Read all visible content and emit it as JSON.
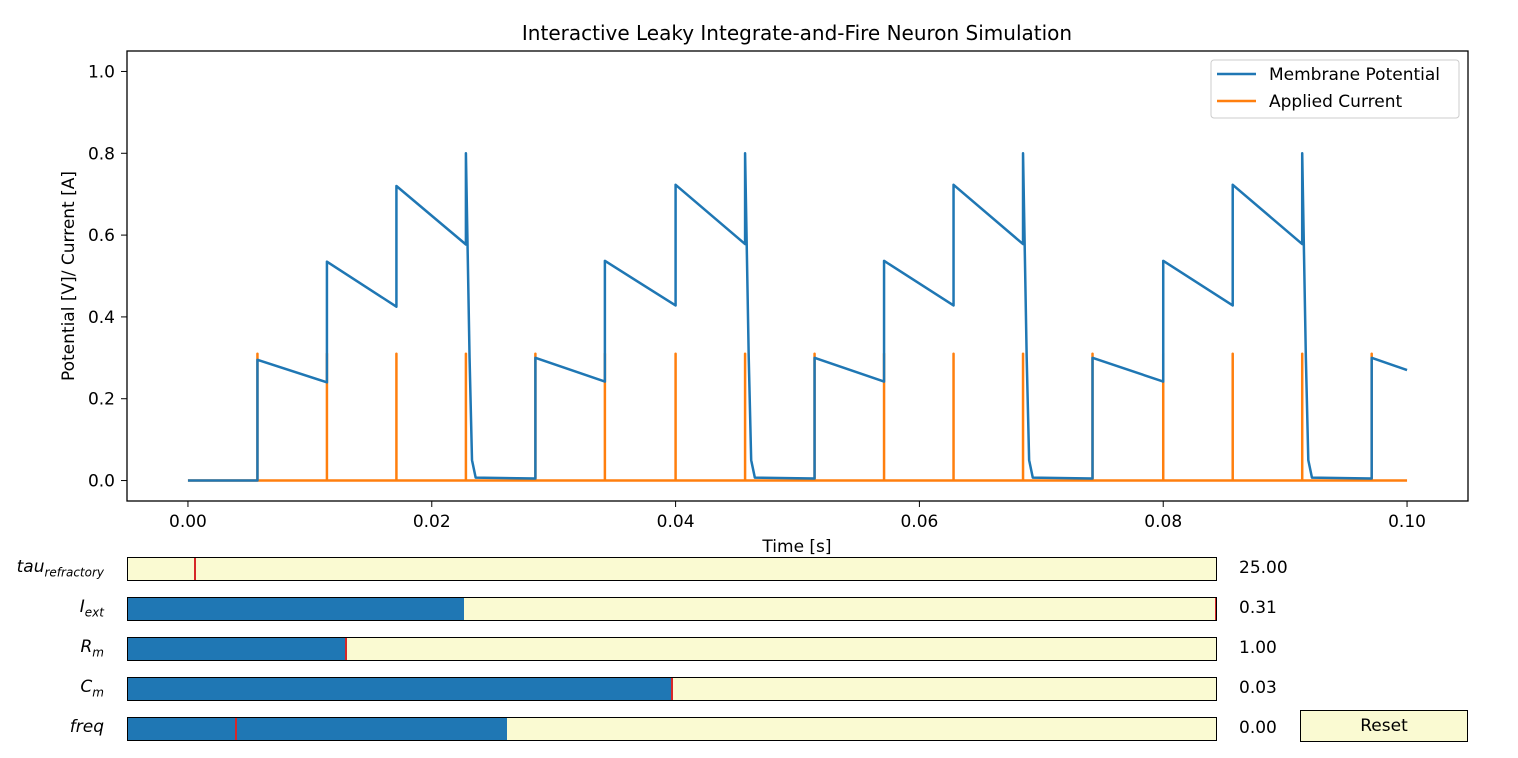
{
  "chart_data": {
    "type": "line",
    "title": "Interactive Leaky Integrate-and-Fire Neuron Simulation",
    "xlabel": "Time [s]",
    "ylabel": "Potential [V]/ Current [A]",
    "xlim": [
      -0.005,
      0.105
    ],
    "ylim": [
      -0.05,
      1.05
    ],
    "xticks": [
      "0.00",
      "0.02",
      "0.04",
      "0.06",
      "0.08",
      "0.10"
    ],
    "yticks": [
      "0.0",
      "0.2",
      "0.4",
      "0.6",
      "0.8",
      "1.0"
    ],
    "legend_position": "top-right",
    "grid": false,
    "series": [
      {
        "name": "Membrane Potential",
        "color": "#1f77b4",
        "points": [
          [
            0.0,
            0.0
          ],
          [
            0.0057,
            0.0
          ],
          [
            0.0057,
            0.295
          ],
          [
            0.0114,
            0.24
          ],
          [
            0.0114,
            0.535
          ],
          [
            0.0171,
            0.425
          ],
          [
            0.0171,
            0.72
          ],
          [
            0.0228,
            0.577
          ],
          [
            0.0228,
            0.8
          ],
          [
            0.0231,
            0.3
          ],
          [
            0.0233,
            0.05
          ],
          [
            0.0236,
            0.007
          ],
          [
            0.0285,
            0.005
          ],
          [
            0.0285,
            0.3
          ],
          [
            0.0342,
            0.242
          ],
          [
            0.0342,
            0.537
          ],
          [
            0.04,
            0.428
          ],
          [
            0.04,
            0.723
          ],
          [
            0.0457,
            0.578
          ],
          [
            0.0457,
            0.8
          ],
          [
            0.046,
            0.3
          ],
          [
            0.0462,
            0.05
          ],
          [
            0.0465,
            0.007
          ],
          [
            0.0514,
            0.005
          ],
          [
            0.0514,
            0.3
          ],
          [
            0.0571,
            0.242
          ],
          [
            0.0571,
            0.537
          ],
          [
            0.0628,
            0.428
          ],
          [
            0.0628,
            0.723
          ],
          [
            0.0685,
            0.578
          ],
          [
            0.0685,
            0.8
          ],
          [
            0.0688,
            0.3
          ],
          [
            0.069,
            0.05
          ],
          [
            0.0693,
            0.007
          ],
          [
            0.0742,
            0.005
          ],
          [
            0.0742,
            0.3
          ],
          [
            0.08,
            0.242
          ],
          [
            0.08,
            0.537
          ],
          [
            0.0857,
            0.428
          ],
          [
            0.0857,
            0.723
          ],
          [
            0.0914,
            0.578
          ],
          [
            0.0914,
            0.8
          ],
          [
            0.0917,
            0.3
          ],
          [
            0.0919,
            0.05
          ],
          [
            0.0922,
            0.007
          ],
          [
            0.0971,
            0.005
          ],
          [
            0.0971,
            0.3
          ],
          [
            0.1,
            0.27
          ]
        ]
      },
      {
        "name": "Applied Current",
        "color": "#ff7f0e",
        "baseline": 0.0,
        "pulse_height": 0.31,
        "pulse_times": [
          0.0057,
          0.0114,
          0.0171,
          0.0228,
          0.0285,
          0.0342,
          0.04,
          0.0457,
          0.0514,
          0.0571,
          0.0628,
          0.0685,
          0.0742,
          0.08,
          0.0857,
          0.0914,
          0.0971
        ],
        "x_range": [
          0.0,
          0.1
        ]
      }
    ]
  },
  "sliders": [
    {
      "label_main": "tau",
      "label_sub": "refractory",
      "value": "25.00",
      "fill": 0.0,
      "valinit": 0.062
    },
    {
      "label_main": "I",
      "label_sub": "ext",
      "value": "0.31",
      "fill": 0.309,
      "valinit": 1.0
    },
    {
      "label_main": "R",
      "label_sub": "m",
      "value": "1.00",
      "fill": 0.2,
      "valinit": 0.2
    },
    {
      "label_main": "C",
      "label_sub": "m",
      "value": "0.03",
      "fill": 0.5,
      "valinit": 0.5
    },
    {
      "label_main": "freq",
      "label_sub": "",
      "value": "0.00",
      "fill": 0.348,
      "valinit": 0.099
    }
  ],
  "reset_label": "Reset",
  "colors": {
    "potential": "#1f77b4",
    "current": "#ff7f0e",
    "slider_bg": "#fafad2",
    "slider_fill": "#1f77b4",
    "valinit_marker": "#d62728"
  }
}
